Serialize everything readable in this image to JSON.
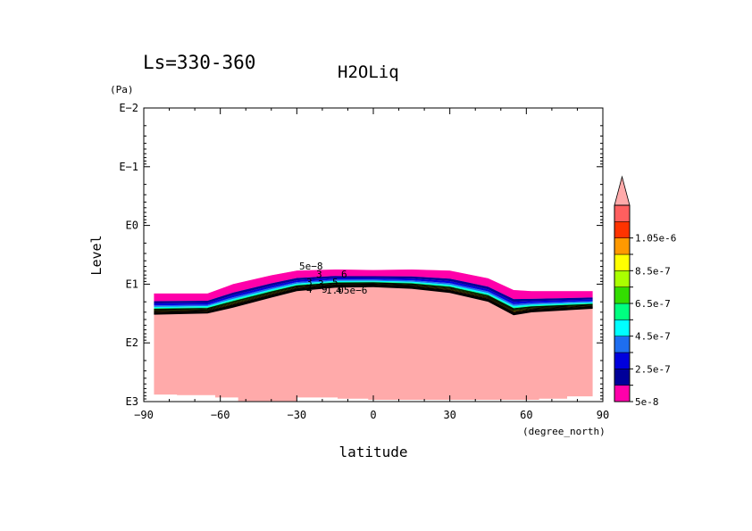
{
  "chart_data": {
    "type": "contour",
    "period": "Ls=330-360",
    "title": "H2OLiq",
    "xlabel": "latitude",
    "xunit": "(degree_north)",
    "ylabel": "Level",
    "yunit": "(Pa)",
    "x_ticks": [
      -90,
      -60,
      -30,
      0,
      30,
      60,
      90
    ],
    "x_tick_labels": [
      "−90",
      "−60",
      "−30",
      "0",
      "30",
      "60",
      "90"
    ],
    "y_ticks_log10": [
      -2,
      -1,
      0,
      1,
      2,
      3
    ],
    "y_tick_labels": [
      "E−2",
      "E−1",
      "E0",
      "E1",
      "E2",
      "E3"
    ],
    "xlim": [
      -90,
      90
    ],
    "ylim_log10_pressure_Pa": [
      -2,
      3
    ],
    "y_axis_direction": "pressure increases downward",
    "colorbar": {
      "levels": [
        "5e-8",
        "1.5e-7",
        "2.5e-7",
        "3.5e-7",
        "4.5e-7",
        "5.5e-7",
        "6.5e-7",
        "7.5e-7",
        "8.5e-7",
        "9.5e-7",
        "1.05e-6"
      ],
      "labels": [
        "5e-8",
        "2.5e-7",
        "4.5e-7",
        "6.5e-7",
        "8.5e-7",
        "1.05e-6"
      ],
      "colors": [
        "#ff00aa",
        "#000099",
        "#0000dd",
        "#1e6ef0",
        "#00ffff",
        "#00ff80",
        "#33dd00",
        "#aaff00",
        "#ffff00",
        "#ff9900",
        "#ff3300",
        "#ff5f5f"
      ],
      "overflow_color": "#ffaaaa",
      "extend": "max"
    },
    "contour_labels": [
      "5e−8",
      "3",
      "6",
      "3",
      "3",
      "5",
      "4",
      "9",
      "4",
      "1.05e−6"
    ],
    "cloud_layer": [
      {
        "lat": -86,
        "top_log10p": 1.16,
        "base_log10p": 1.52
      },
      {
        "lat": -65,
        "top_log10p": 1.16,
        "base_log10p": 1.5
      },
      {
        "lat": -55,
        "top_log10p": 1.0,
        "base_log10p": 1.4
      },
      {
        "lat": -40,
        "top_log10p": 0.85,
        "base_log10p": 1.23
      },
      {
        "lat": -30,
        "top_log10p": 0.77,
        "base_log10p": 1.12
      },
      {
        "lat": -15,
        "top_log10p": 0.75,
        "base_log10p": 1.06
      },
      {
        "lat": 0,
        "top_log10p": 0.76,
        "base_log10p": 1.05
      },
      {
        "lat": 15,
        "top_log10p": 0.75,
        "base_log10p": 1.08
      },
      {
        "lat": 30,
        "top_log10p": 0.77,
        "base_log10p": 1.15
      },
      {
        "lat": 45,
        "top_log10p": 0.9,
        "base_log10p": 1.3
      },
      {
        "lat": 55,
        "top_log10p": 1.1,
        "base_log10p": 1.53
      },
      {
        "lat": 62,
        "top_log10p": 1.12,
        "base_log10p": 1.48
      },
      {
        "lat": 86,
        "top_log10p": 1.12,
        "base_log10p": 1.42
      }
    ],
    "ground_surface": [
      {
        "lat": -86,
        "log10p": 2.88
      },
      {
        "lat": -77,
        "log10p": 2.88
      },
      {
        "lat": -77,
        "log10p": 2.89
      },
      {
        "lat": -62,
        "log10p": 2.89
      },
      {
        "lat": -62,
        "log10p": 2.93
      },
      {
        "lat": -53,
        "log10p": 2.93
      },
      {
        "lat": -53,
        "log10p": 2.99
      },
      {
        "lat": -30,
        "log10p": 2.99
      },
      {
        "lat": -30,
        "log10p": 2.93
      },
      {
        "lat": -14,
        "log10p": 2.93
      },
      {
        "lat": -14,
        "log10p": 2.95
      },
      {
        "lat": -2,
        "log10p": 2.95
      },
      {
        "lat": -2,
        "log10p": 2.97
      },
      {
        "lat": 65,
        "log10p": 2.97
      },
      {
        "lat": 65,
        "log10p": 2.95
      },
      {
        "lat": 76,
        "log10p": 2.95
      },
      {
        "lat": 76,
        "log10p": 2.91
      },
      {
        "lat": 86,
        "log10p": 2.91
      }
    ]
  }
}
